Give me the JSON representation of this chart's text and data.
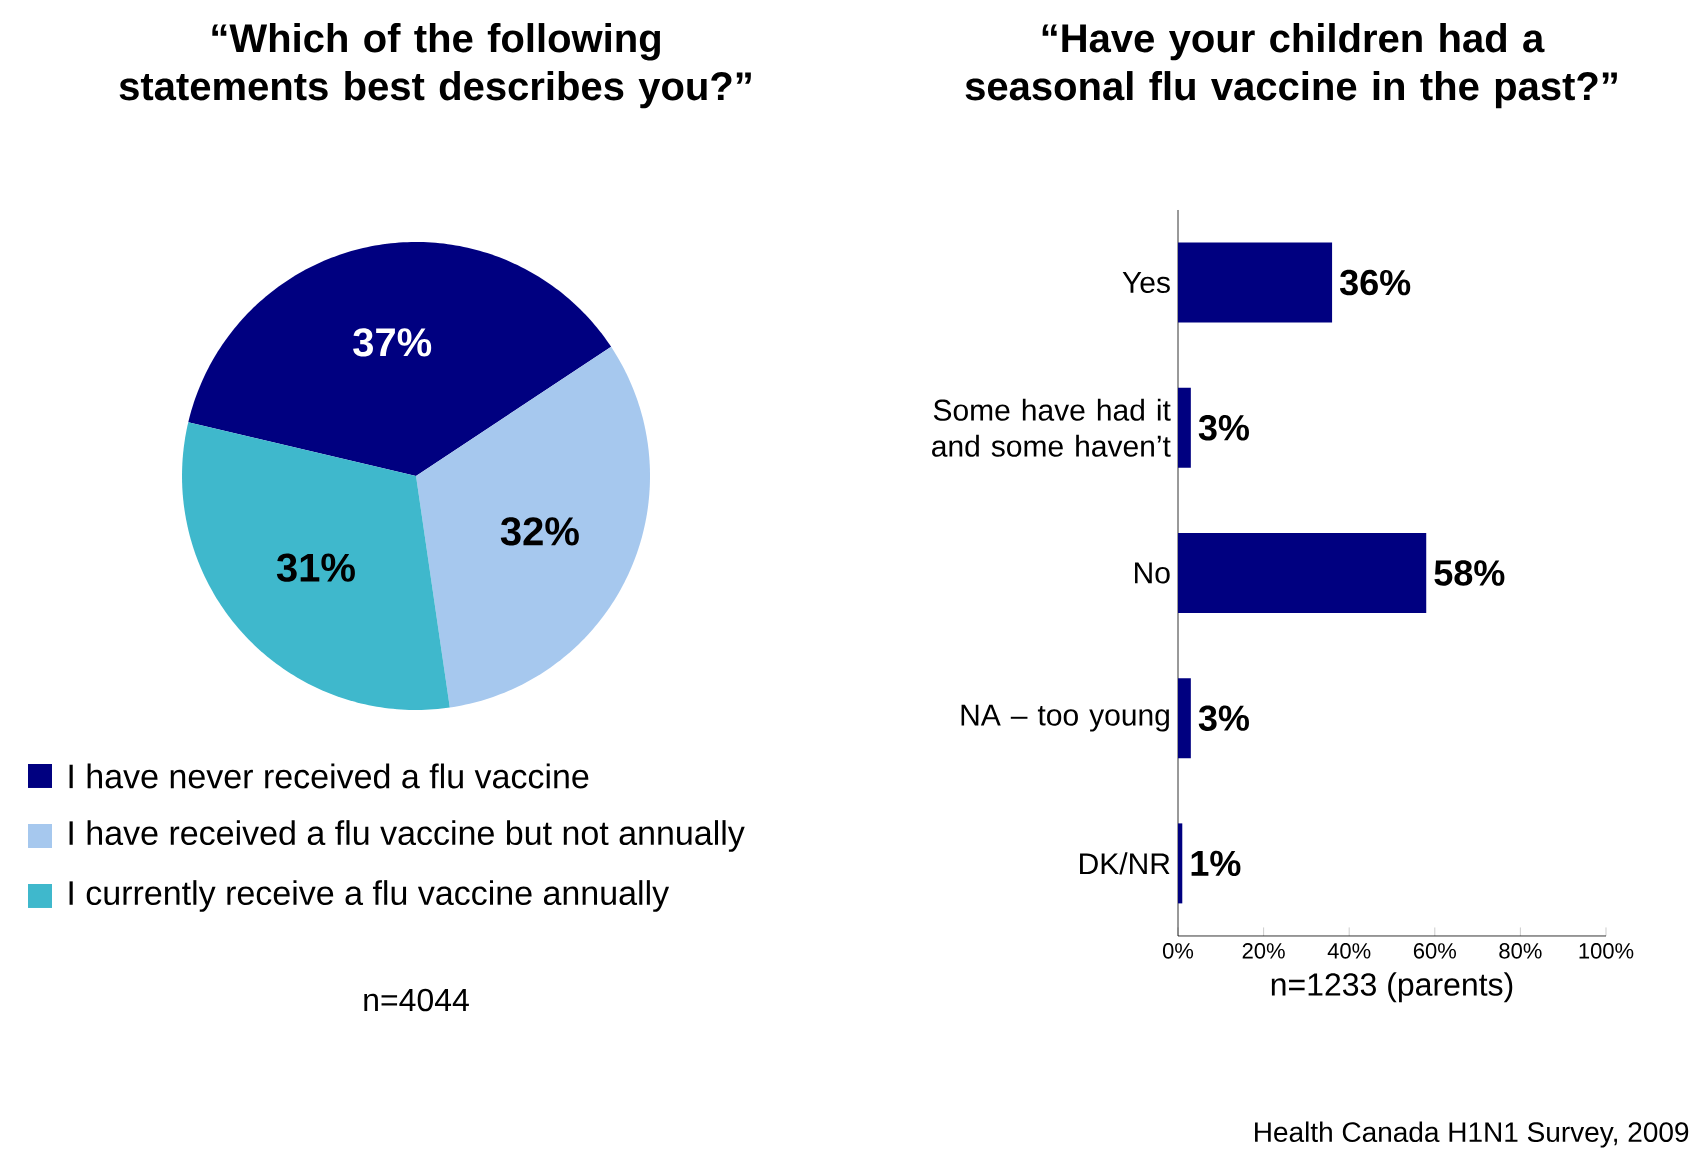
{
  "chart_data": [
    {
      "type": "pie",
      "title": "“Which of the following statements best describes you?”",
      "categories": [
        "I have never received a flu vaccine",
        "I have received a flu vaccine but not annually",
        "I currently receive a flu vaccine annually"
      ],
      "values": [
        37,
        32,
        31
      ],
      "colors": [
        "#000080",
        "#a6c8ee",
        "#3fb8cc"
      ],
      "value_labels": [
        "37%",
        "32%",
        "31%"
      ],
      "legend": "bottom",
      "annotations": [
        "n=4044"
      ]
    },
    {
      "type": "bar",
      "orientation": "horizontal",
      "title": "“Have your children had a seasonal flu vaccine in the past?”",
      "categories": [
        "Yes",
        "Some have had it and some haven’t",
        "No",
        "NA – too young",
        "DK/NR"
      ],
      "values": [
        36,
        3,
        58,
        3,
        1
      ],
      "color": "#000080",
      "value_labels": [
        "36%",
        "3%",
        "58%",
        "3%",
        "1%"
      ],
      "xlim": [
        0,
        100
      ],
      "xticks": [
        {
          "value": 0,
          "label": "0%"
        },
        {
          "value": 20,
          "label": "20%"
        },
        {
          "value": 40,
          "label": "40%"
        },
        {
          "value": 60,
          "label": "60%"
        },
        {
          "value": 80,
          "label": "80%"
        },
        {
          "value": 100,
          "label": "100%"
        }
      ],
      "xlabel": "n=1233 (parents)",
      "annotations": [
        "Health Canada H1N1 Survey, 2009"
      ]
    }
  ]
}
